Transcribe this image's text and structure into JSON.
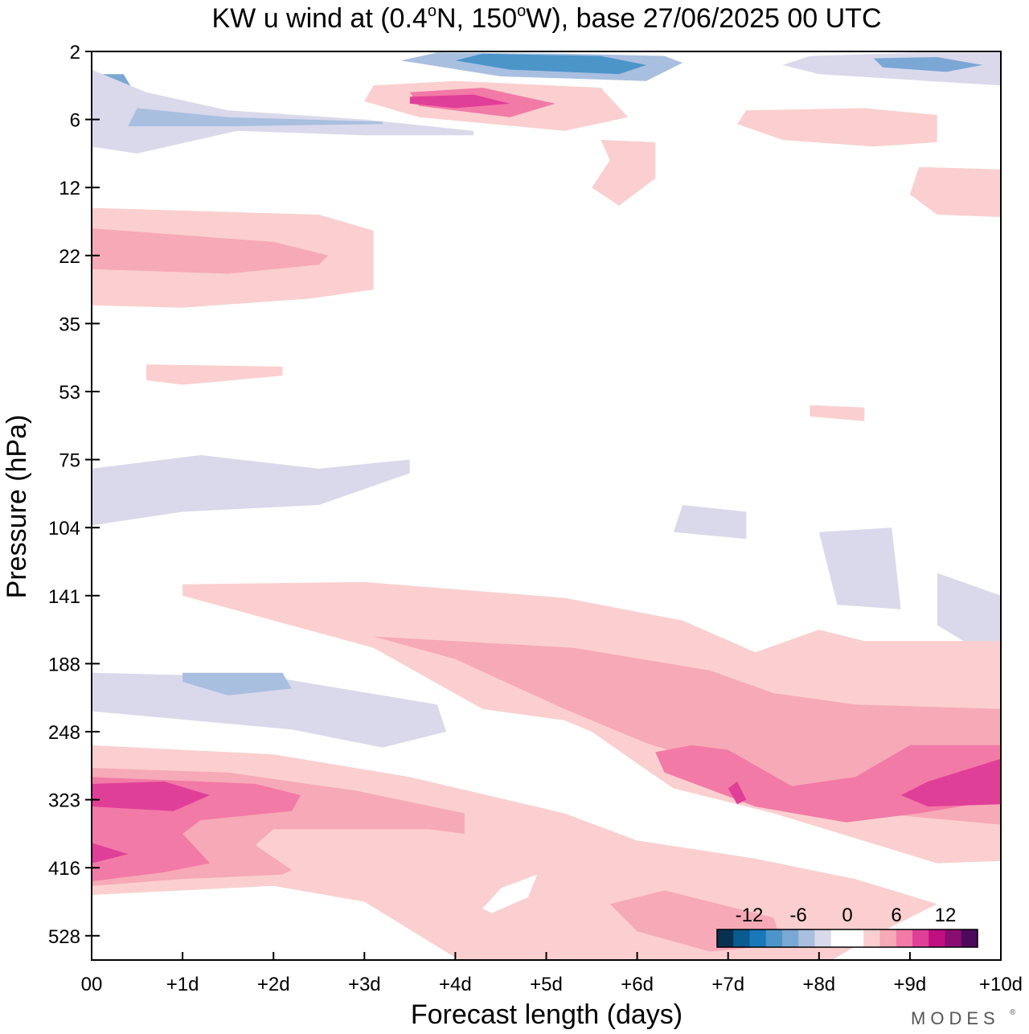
{
  "chart_data": {
    "type": "contour",
    "title": {
      "prefix": "KW u wind at (0.4",
      "deg1": "o",
      "mid": "N, 150",
      "deg2": "o",
      "suffix": "W),  base 27/06/2025  00 UTC"
    },
    "xlabel": "Forecast length (days)",
    "ylabel": "Pressure (hPa)",
    "x_ticks": [
      "00",
      "+1d",
      "+2d",
      "+3d",
      "+4d",
      "+5d",
      "+6d",
      "+7d",
      "+8d",
      "+9d",
      "+10d"
    ],
    "xlim_days": [
      0,
      10
    ],
    "y_ticks": [
      "2",
      "6",
      "12",
      "22",
      "35",
      "53",
      "75",
      "104",
      "141",
      "188",
      "248",
      "323",
      "416",
      "528"
    ],
    "y_scale": "pressure (decreasing upward)",
    "colorbar": {
      "placement": "bottom-right inside plot",
      "labels": [
        "-12",
        "-6",
        "0",
        "6",
        "12"
      ],
      "colors": [
        "#08304f",
        "#0a5b8f",
        "#1878b8",
        "#4c95c9",
        "#7ba7d4",
        "#a9bfe0",
        "#d9d9eb",
        "#ffffff",
        "#ffffff",
        "#fbcfcf",
        "#f6a9b6",
        "#f27aa6",
        "#e03f98",
        "#bf0f80",
        "#8a0d72",
        "#4d0a5c"
      ]
    },
    "regions": [
      {
        "level": -6,
        "color": "#7ba7d4",
        "pts": [
          [
            0,
            1
          ],
          [
            0.35,
            1
          ],
          [
            0.5,
            2
          ],
          [
            0.3,
            3.4
          ],
          [
            0,
            3.6
          ]
        ]
      },
      {
        "level": -10,
        "color": "#1878b8",
        "pts": [
          [
            0,
            1.5
          ],
          [
            0.25,
            1.6
          ],
          [
            0.3,
            2.3
          ],
          [
            0.05,
            2.6
          ],
          [
            0,
            2.4
          ]
        ]
      },
      {
        "level": -3,
        "color": "#d9d9eb",
        "pts": [
          [
            0,
            0.8
          ],
          [
            0.6,
            1.8
          ],
          [
            1.5,
            2.6
          ],
          [
            3,
            3
          ],
          [
            4.2,
            3.5
          ],
          [
            4.2,
            3.7
          ],
          [
            3,
            3.7
          ],
          [
            1.6,
            3.5
          ],
          [
            0.5,
            4.5
          ],
          [
            0,
            4.2
          ]
        ]
      },
      {
        "level": -5,
        "color": "#a9bfe0",
        "pts": [
          [
            0.5,
            2.5
          ],
          [
            1.5,
            2.9
          ],
          [
            3.2,
            3.1
          ],
          [
            3.2,
            3.2
          ],
          [
            1.5,
            3.3
          ],
          [
            0.4,
            3.3
          ]
        ]
      },
      {
        "level": -4,
        "color": "#a9bfe0",
        "pts": [
          [
            3.8,
            0.05
          ],
          [
            5.2,
            0.1
          ],
          [
            6.3,
            0.2
          ],
          [
            6.5,
            0.5
          ],
          [
            6.1,
            1.3
          ],
          [
            4.5,
            1.1
          ],
          [
            3.4,
            0.4
          ]
        ]
      },
      {
        "level": -9,
        "color": "#4c95c9",
        "pts": [
          [
            4.3,
            0.1
          ],
          [
            5.6,
            0.2
          ],
          [
            6.1,
            0.6
          ],
          [
            5.8,
            1.0
          ],
          [
            4.6,
            0.8
          ],
          [
            4.0,
            0.4
          ]
        ]
      },
      {
        "level": -3,
        "color": "#d9d9eb",
        "pts": [
          [
            7.9,
            0.2
          ],
          [
            9.1,
            0.05
          ],
          [
            10,
            0.05
          ],
          [
            10,
            1.5
          ],
          [
            9.2,
            1.3
          ],
          [
            8.0,
            1.0
          ],
          [
            7.6,
            0.6
          ]
        ]
      },
      {
        "level": -6,
        "color": "#7ba7d4",
        "pts": [
          [
            8.6,
            0.3
          ],
          [
            9.3,
            0.25
          ],
          [
            9.8,
            0.6
          ],
          [
            9.4,
            0.9
          ],
          [
            8.7,
            0.7
          ]
        ]
      },
      {
        "level": 3,
        "color": "#fbcfcf",
        "pts": [
          [
            3.1,
            1.5
          ],
          [
            4,
            1.3
          ],
          [
            5.6,
            1.6
          ],
          [
            5.9,
            2.9
          ],
          [
            5.2,
            3.5
          ],
          [
            3.6,
            2.9
          ],
          [
            3.0,
            2.2
          ]
        ]
      },
      {
        "level": 9,
        "color": "#f27aa6",
        "pts": [
          [
            3.5,
            1.8
          ],
          [
            4.3,
            1.6
          ],
          [
            5.1,
            2.3
          ],
          [
            4.6,
            2.9
          ],
          [
            3.6,
            2.4
          ]
        ]
      },
      {
        "level": 12,
        "color": "#e03f98",
        "pts": [
          [
            3.5,
            2.0
          ],
          [
            4.2,
            1.9
          ],
          [
            4.6,
            2.3
          ],
          [
            4.0,
            2.5
          ],
          [
            3.5,
            2.3
          ]
        ]
      },
      {
        "level": 3,
        "color": "#fbcfcf",
        "pts": [
          [
            7.2,
            2.6
          ],
          [
            8.5,
            2.5
          ],
          [
            9.3,
            2.8
          ],
          [
            9.3,
            4.0
          ],
          [
            8.6,
            4.2
          ],
          [
            7.6,
            3.9
          ],
          [
            7.1,
            3.2
          ]
        ]
      },
      {
        "level": 3,
        "color": "#fbcfcf",
        "pts": [
          [
            9.1,
            5.1
          ],
          [
            10,
            5.2
          ],
          [
            10,
            7.3
          ],
          [
            9.3,
            7.2
          ],
          [
            9.0,
            6.3
          ]
        ]
      },
      {
        "level": 3,
        "color": "#fbcfcf",
        "pts": [
          [
            5.6,
            3.9
          ],
          [
            6.2,
            4
          ],
          [
            6.2,
            5.6
          ],
          [
            5.8,
            6.8
          ],
          [
            5.5,
            6.0
          ],
          [
            5.7,
            4.8
          ]
        ]
      },
      {
        "level": 3,
        "color": "#fbcfcf",
        "pts": [
          [
            0,
            6.9
          ],
          [
            2.5,
            7.2
          ],
          [
            3.1,
            7.9
          ],
          [
            3.1,
            10.5
          ],
          [
            2.4,
            10.9
          ],
          [
            1.0,
            11.3
          ],
          [
            0,
            11.2
          ]
        ]
      },
      {
        "level": 6,
        "color": "#f6a9b6",
        "pts": [
          [
            0,
            7.8
          ],
          [
            2.0,
            8.4
          ],
          [
            2.6,
            9.0
          ],
          [
            2.5,
            9.4
          ],
          [
            1.5,
            9.8
          ],
          [
            0,
            9.6
          ]
        ]
      },
      {
        "level": 3,
        "color": "#fbcfcf",
        "pts": [
          [
            0.6,
            13.8
          ],
          [
            2.1,
            13.9
          ],
          [
            2.1,
            14.3
          ],
          [
            1.0,
            14.7
          ],
          [
            0.6,
            14.5
          ]
        ]
      },
      {
        "level": 3,
        "color": "#fbcfcf",
        "pts": [
          [
            7.9,
            15.6
          ],
          [
            8.5,
            15.7
          ],
          [
            8.5,
            16.3
          ],
          [
            7.9,
            16.1
          ]
        ]
      },
      {
        "level": -3,
        "color": "#d9d9eb",
        "pts": [
          [
            0,
            18.4
          ],
          [
            1.2,
            17.8
          ],
          [
            2.5,
            18.4
          ],
          [
            3.5,
            18.0
          ],
          [
            3.5,
            18.6
          ],
          [
            2.5,
            20.0
          ],
          [
            1.0,
            20.3
          ],
          [
            0,
            20.9
          ]
        ]
      },
      {
        "level": -3,
        "color": "#d9d9eb",
        "pts": [
          [
            6.5,
            20.0
          ],
          [
            7.2,
            20.3
          ],
          [
            7.2,
            21.5
          ],
          [
            6.4,
            21.2
          ]
        ]
      },
      {
        "level": -3,
        "color": "#d9d9eb",
        "pts": [
          [
            8.0,
            21.2
          ],
          [
            8.8,
            21.0
          ],
          [
            8.9,
            24.6
          ],
          [
            8.2,
            24.4
          ]
        ]
      },
      {
        "level": -3,
        "color": "#d9d9eb",
        "pts": [
          [
            9.3,
            23.0
          ],
          [
            10,
            24.0
          ],
          [
            10,
            27.0
          ],
          [
            9.3,
            25.3
          ]
        ]
      },
      {
        "level": -3,
        "color": "#d9d9eb",
        "pts": [
          [
            0,
            27.4
          ],
          [
            2.0,
            27.6
          ],
          [
            3.8,
            28.8
          ],
          [
            3.9,
            30.0
          ],
          [
            3.2,
            30.7
          ],
          [
            2.2,
            29.9
          ],
          [
            0,
            29.1
          ]
        ]
      },
      {
        "level": -5,
        "color": "#a9bfe0",
        "pts": [
          [
            1.0,
            27.4
          ],
          [
            2.1,
            27.4
          ],
          [
            2.2,
            28.1
          ],
          [
            1.5,
            28.4
          ],
          [
            1.0,
            27.8
          ]
        ]
      },
      {
        "level": 3,
        "color": "#fbcfcf",
        "pts": [
          [
            1.0,
            23.5
          ],
          [
            3.0,
            23.4
          ],
          [
            5.2,
            24.1
          ],
          [
            6.5,
            25.1
          ],
          [
            7.3,
            26.5
          ],
          [
            8.0,
            25.5
          ],
          [
            8.5,
            26.0
          ],
          [
            10,
            26.0
          ],
          [
            10,
            35.7
          ],
          [
            9.3,
            35.8
          ],
          [
            7.5,
            33.6
          ],
          [
            6.4,
            32.5
          ],
          [
            6.0,
            31.4
          ],
          [
            5.5,
            30.0
          ],
          [
            5.2,
            29.5
          ],
          [
            4.3,
            29.0
          ],
          [
            3.1,
            26.3
          ],
          [
            1.0,
            24.0
          ]
        ]
      },
      {
        "level": 6,
        "color": "#f6a9b6",
        "pts": [
          [
            3.1,
            25.8
          ],
          [
            5.3,
            26.3
          ],
          [
            6.8,
            27.3
          ],
          [
            7.5,
            28.3
          ],
          [
            8.4,
            28.8
          ],
          [
            10,
            29.0
          ],
          [
            10,
            34.1
          ],
          [
            8.9,
            33.7
          ],
          [
            7.5,
            32.5
          ],
          [
            6.8,
            31.4
          ],
          [
            6.1,
            30.5
          ],
          [
            5.2,
            29.0
          ],
          [
            4.0,
            26.8
          ]
        ]
      },
      {
        "level": 9,
        "color": "#f27aa6",
        "pts": [
          [
            6.2,
            30.9
          ],
          [
            6.6,
            30.6
          ],
          [
            7.0,
            30.8
          ],
          [
            7.7,
            32.4
          ],
          [
            8.4,
            32.0
          ],
          [
            9.0,
            30.6
          ],
          [
            10,
            30.6
          ],
          [
            10,
            33.0
          ],
          [
            9.1,
            33.6
          ],
          [
            8.3,
            34.0
          ],
          [
            7.3,
            33.3
          ],
          [
            6.3,
            31.8
          ]
        ]
      },
      {
        "level": 12,
        "color": "#e03f98",
        "pts": [
          [
            8.9,
            32.8
          ],
          [
            9.2,
            32.2
          ],
          [
            10,
            31.2
          ],
          [
            10,
            33.2
          ],
          [
            9.2,
            33.3
          ]
        ]
      },
      {
        "level": 12,
        "color": "#e03f98",
        "pts": [
          [
            7.0,
            32.5
          ],
          [
            7.1,
            32.2
          ],
          [
            7.2,
            33.0
          ],
          [
            7.1,
            33.2
          ]
        ]
      },
      {
        "level": 3,
        "color": "#fbcfcf",
        "pts": [
          [
            0,
            30.6
          ],
          [
            2.0,
            31.0
          ],
          [
            3.5,
            32.0
          ],
          [
            5.2,
            33.6
          ],
          [
            6.0,
            34.8
          ],
          [
            7.3,
            35.6
          ],
          [
            8.4,
            36.5
          ],
          [
            9.3,
            37.6
          ],
          [
            8.6,
            39.0
          ],
          [
            8.0,
            40.4
          ],
          [
            7.6,
            41.3
          ],
          [
            6.0,
            41.5
          ],
          [
            4.3,
            40.7
          ],
          [
            3.0,
            37.5
          ],
          [
            2.0,
            36.8
          ],
          [
            0,
            37.2
          ]
        ]
      },
      {
        "level": 6,
        "color": "#f6a9b6",
        "pts": [
          [
            0,
            31.6
          ],
          [
            1.5,
            31.8
          ],
          [
            2.9,
            32.6
          ],
          [
            4.1,
            33.6
          ],
          [
            4.1,
            34.5
          ],
          [
            3.7,
            34.3
          ],
          [
            2.0,
            34.3
          ],
          [
            1.8,
            35.0
          ],
          [
            2.2,
            36.1
          ],
          [
            2.1,
            36.3
          ],
          [
            1.0,
            36.5
          ],
          [
            0,
            36.8
          ]
        ]
      },
      {
        "level": 9,
        "color": "#f27aa6",
        "pts": [
          [
            0,
            32.0
          ],
          [
            1.8,
            32.3
          ],
          [
            2.3,
            32.8
          ],
          [
            2.2,
            33.5
          ],
          [
            1.2,
            33.9
          ],
          [
            1.0,
            34.5
          ],
          [
            1.3,
            35.8
          ],
          [
            0.8,
            36.2
          ],
          [
            0,
            36.6
          ]
        ]
      },
      {
        "level": 12,
        "color": "#e03f98",
        "pts": [
          [
            0,
            32.3
          ],
          [
            0.8,
            32.2
          ],
          [
            1.3,
            32.8
          ],
          [
            0.9,
            33.5
          ],
          [
            0,
            33.3
          ]
        ]
      },
      {
        "level": 12,
        "color": "#e03f98",
        "pts": [
          [
            0,
            34.9
          ],
          [
            0.4,
            35.4
          ],
          [
            0,
            35.8
          ]
        ]
      },
      {
        "level": 0,
        "color": "#ffffff",
        "pts": [
          [
            4.5,
            36.9
          ],
          [
            4.9,
            36.3
          ],
          [
            4.8,
            37.3
          ],
          [
            4.4,
            38.0
          ],
          [
            4.3,
            37.8
          ]
        ]
      },
      {
        "level": 6,
        "color": "#f6a9b6",
        "pts": [
          [
            5.7,
            37.6
          ],
          [
            6.3,
            37.0
          ],
          [
            7.5,
            38.2
          ],
          [
            7.6,
            39.4
          ],
          [
            6.8,
            39.7
          ],
          [
            6.0,
            38.8
          ]
        ]
      }
    ]
  }
}
